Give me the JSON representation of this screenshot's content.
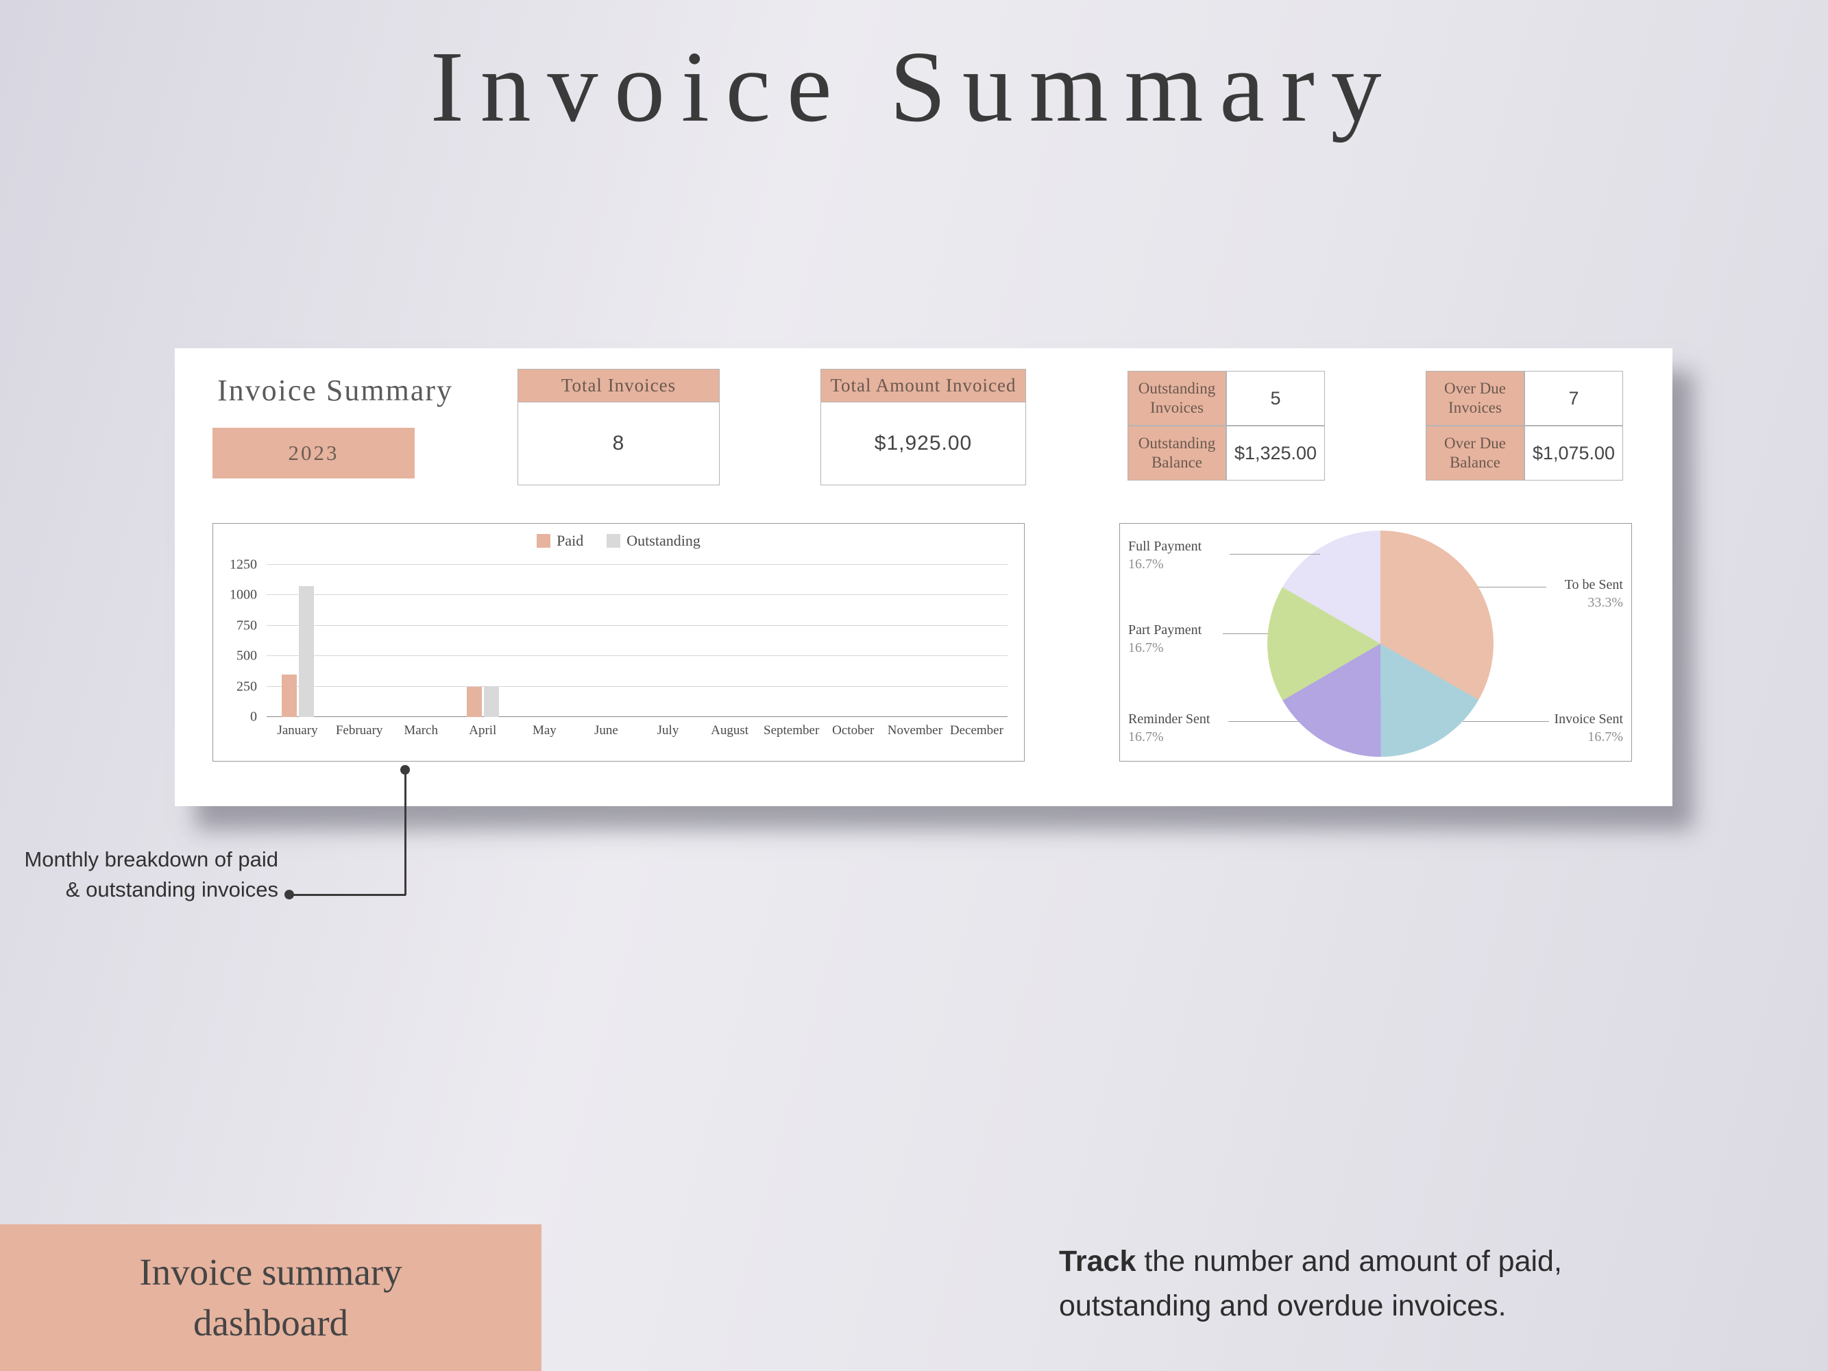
{
  "colors": {
    "accent": "#e6b39e",
    "card_bg": "#ffffff",
    "title_text": "#3a3a3a"
  },
  "page": {
    "title": "Invoice Summary"
  },
  "dashboard": {
    "heading": "Invoice Summary",
    "year": "2023",
    "stats": [
      {
        "label": "Total Invoices",
        "value": "8"
      },
      {
        "label": "Total Amount Invoiced",
        "value": "$1,925.00"
      }
    ],
    "side_stats": [
      {
        "label": "Outstanding Invoices",
        "value": "5"
      },
      {
        "label": "Outstanding Balance",
        "value": "$1,325.00"
      },
      {
        "label": "Over Due Invoices",
        "value": "7"
      },
      {
        "label": "Over Due Balance",
        "value": "$1,075.00"
      }
    ]
  },
  "chart_data": [
    {
      "type": "bar",
      "title": "",
      "categories": [
        "January",
        "February",
        "March",
        "April",
        "May",
        "June",
        "July",
        "August",
        "September",
        "October",
        "November",
        "December"
      ],
      "series": [
        {
          "name": "Paid",
          "color": "#e6b39e",
          "values": [
            350,
            0,
            0,
            250,
            0,
            0,
            0,
            0,
            0,
            0,
            0,
            0
          ]
        },
        {
          "name": "Outstanding",
          "color": "#d9d9d9",
          "values": [
            1075,
            0,
            0,
            250,
            0,
            0,
            0,
            0,
            0,
            0,
            0,
            0
          ]
        }
      ],
      "ylim": [
        0,
        1250
      ],
      "yticks": [
        0,
        250,
        500,
        750,
        1000,
        1250
      ],
      "legend_position": "top",
      "grid": true
    },
    {
      "type": "pie",
      "slices": [
        {
          "label": "To be Sent",
          "value": 33.3,
          "pct": "33.3%",
          "color": "#ebbfa9"
        },
        {
          "label": "Invoice Sent",
          "value": 16.7,
          "pct": "16.7%",
          "color": "#a9d1dc"
        },
        {
          "label": "Reminder Sent",
          "value": 16.7,
          "pct": "16.7%",
          "color": "#b3a5e2"
        },
        {
          "label": "Part Payment",
          "value": 16.7,
          "pct": "16.7%",
          "color": "#c9df97"
        },
        {
          "label": "Full Payment",
          "value": 16.7,
          "pct": "16.7%",
          "color": "#e6e2f8"
        }
      ]
    }
  ],
  "annotation": {
    "text": "Monthly breakdown of paid & outstanding invoices"
  },
  "footer": {
    "label": "Invoice summary dashboard",
    "note_bold": "Track",
    "note_rest": " the number and amount of paid, outstanding and overdue invoices."
  }
}
